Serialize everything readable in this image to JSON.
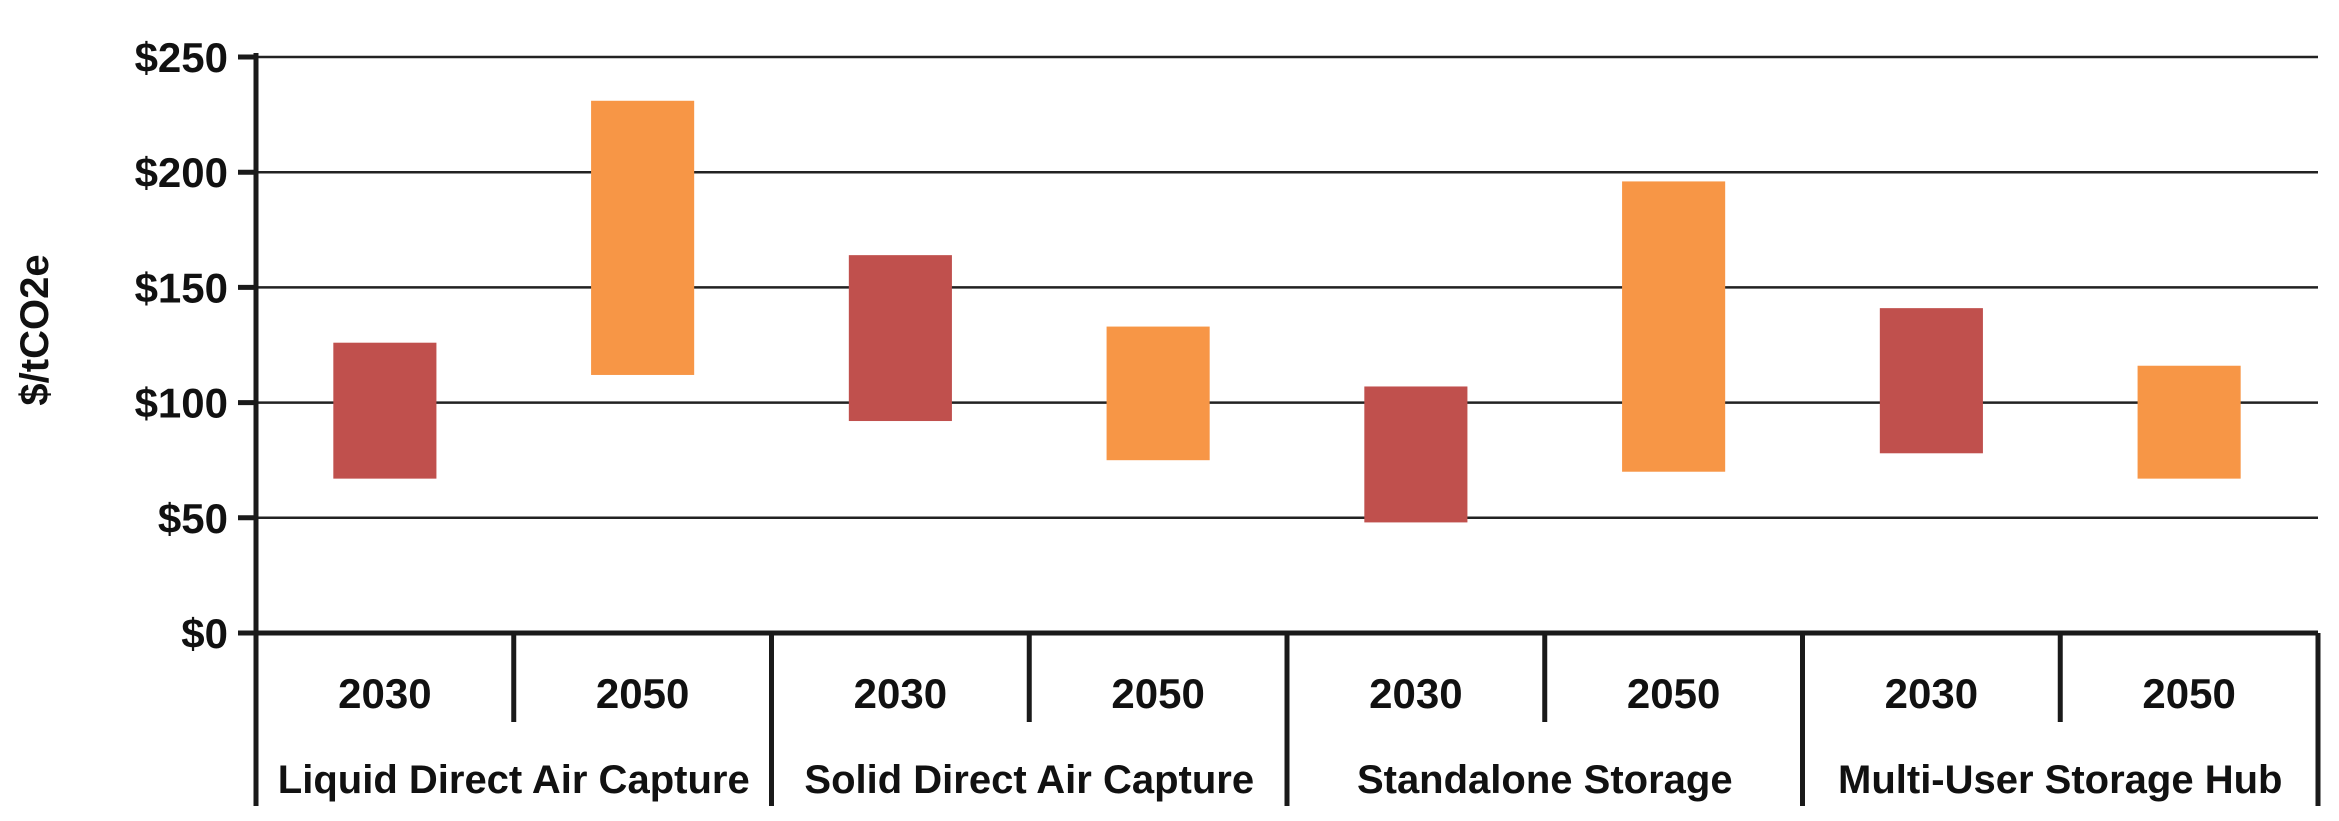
{
  "chart_data": {
    "type": "bar",
    "subtype": "floating-range",
    "ylabel": "$/tCO2e",
    "ylim": [
      0,
      250
    ],
    "yticks": [
      0,
      50,
      100,
      150,
      200,
      250
    ],
    "ytick_labels": [
      "$0",
      "$50",
      "$100",
      "$150",
      "$200",
      "$250"
    ],
    "grid": true,
    "legend": "none",
    "colors": {
      "2030": "#c0504d",
      "2050": "#f79646"
    },
    "groups": [
      {
        "name": "Liquid Direct Air Capture",
        "bars": [
          {
            "year": "2030",
            "low": 67,
            "high": 126
          },
          {
            "year": "2050",
            "low": 112,
            "high": 231
          }
        ]
      },
      {
        "name": "Solid Direct Air Capture",
        "bars": [
          {
            "year": "2030",
            "low": 92,
            "high": 164
          },
          {
            "year": "2050",
            "low": 75,
            "high": 133
          }
        ]
      },
      {
        "name": "Standalone Storage",
        "bars": [
          {
            "year": "2030",
            "low": 48,
            "high": 107
          },
          {
            "year": "2050",
            "low": 70,
            "high": 196
          }
        ]
      },
      {
        "name": "Multi-User Storage Hub",
        "bars": [
          {
            "year": "2030",
            "low": 78,
            "high": 141
          },
          {
            "year": "2050",
            "low": 67,
            "high": 116
          }
        ]
      }
    ]
  }
}
